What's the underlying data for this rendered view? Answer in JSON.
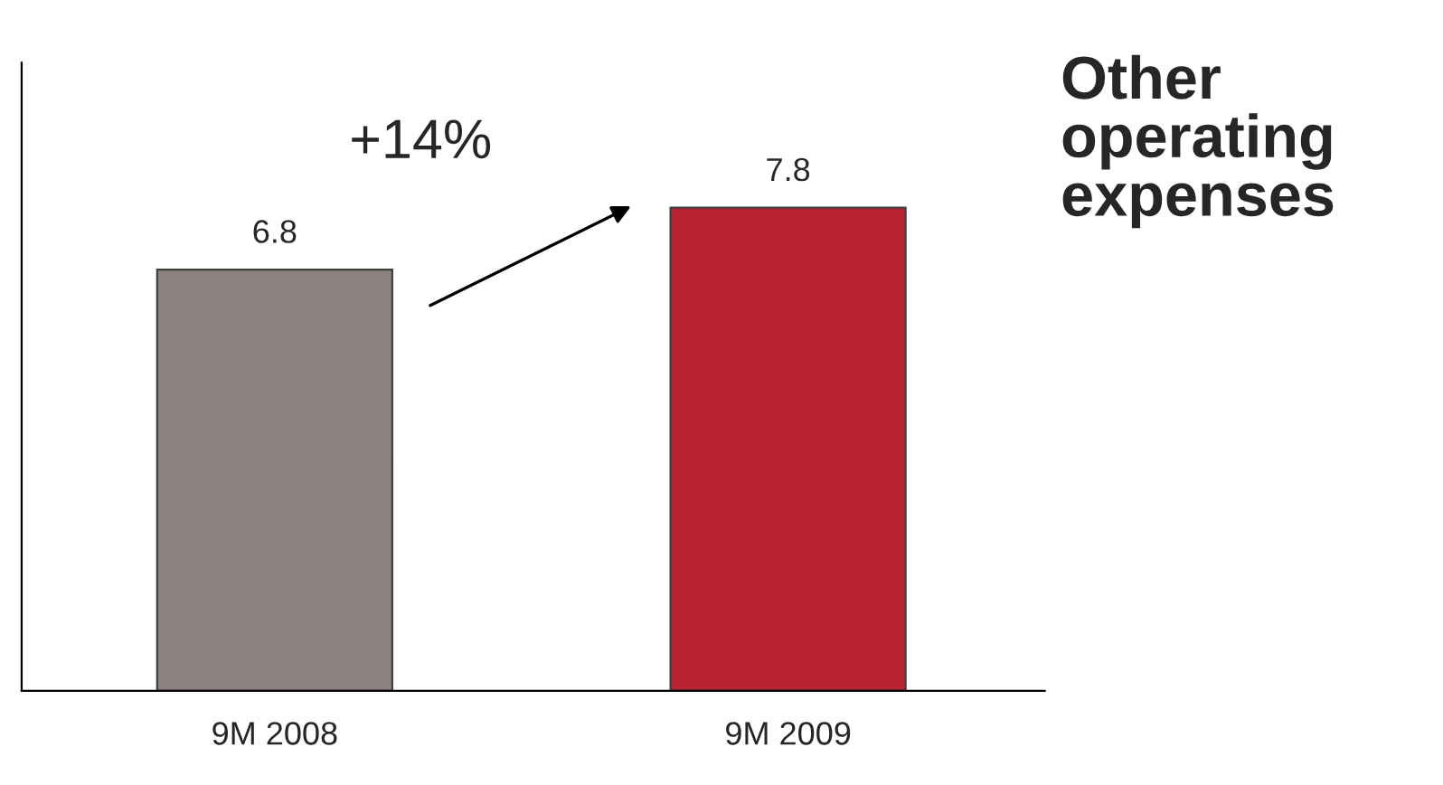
{
  "chart_data": {
    "type": "bar",
    "title": "Other operating expenses",
    "categories": [
      "9M 2008",
      "9M 2009"
    ],
    "values": [
      6.8,
      7.8
    ],
    "colors": [
      "#8c8381",
      "#b8212f"
    ],
    "data_labels": true,
    "annotations": [
      "+14%"
    ],
    "grid": false,
    "legend": false
  }
}
